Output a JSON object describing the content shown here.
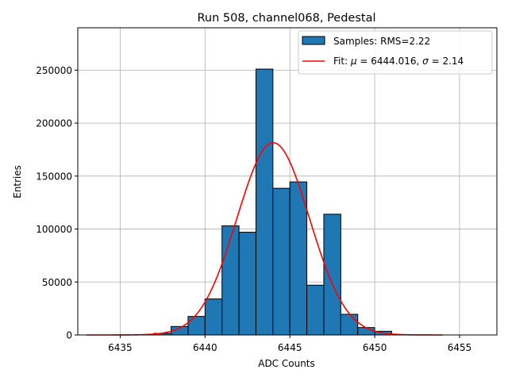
{
  "chart_data": {
    "type": "bar",
    "title": "Run 508, channel068, Pedestal",
    "xlabel": "ADC Counts",
    "ylabel": "Entries",
    "xlim": [
      6432.5,
      6457.2
    ],
    "ylim": [
      0,
      290000
    ],
    "xticks": [
      6435,
      6440,
      6445,
      6450,
      6455
    ],
    "yticks": [
      0,
      50000,
      100000,
      150000,
      200000,
      250000
    ],
    "grid": true,
    "legend_position": "top-right",
    "histogram": {
      "name": "Samples: RMS=2.22",
      "color": "#1f77b4",
      "bin_width": 1,
      "bin_starts": [
        6437,
        6438,
        6439,
        6440,
        6441,
        6442,
        6443,
        6444,
        6445,
        6446,
        6447,
        6448,
        6449,
        6450
      ],
      "values": [
        1500,
        8000,
        17500,
        34000,
        103000,
        97000,
        251000,
        138500,
        144500,
        47000,
        114000,
        19500,
        7000,
        3500
      ]
    },
    "fit": {
      "name": "Fit: μ = 6444.016, σ = 2.14",
      "name_parts": [
        "Fit: ",
        "μ",
        " = 6444.016, ",
        "σ",
        " = 2.14"
      ],
      "color": "#ff0000",
      "mu": 6444.016,
      "sigma": 2.14,
      "amplitude": 181500,
      "x_range": [
        6433,
        6454
      ]
    }
  }
}
